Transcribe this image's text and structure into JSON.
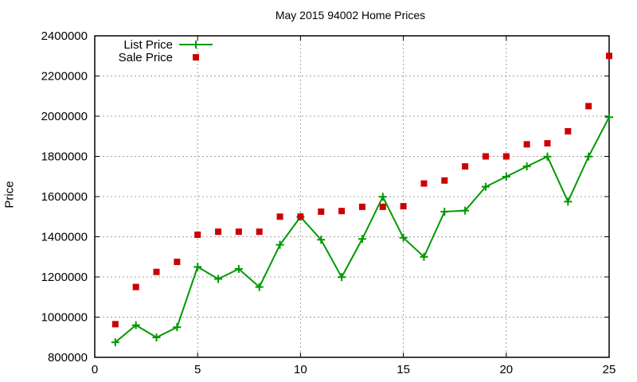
{
  "chart_data": {
    "type": "line",
    "title": "May 2015 94002 Home Prices",
    "xlabel": "",
    "ylabel": "Price",
    "xlim": [
      0,
      25
    ],
    "ylim": [
      800000,
      2400000
    ],
    "x_ticks": [
      "0",
      "5",
      "10",
      "15",
      "20",
      "25"
    ],
    "y_ticks": [
      "800000",
      "1000000",
      "1200000",
      "1400000",
      "1600000",
      "1800000",
      "2000000",
      "2200000",
      "2400000"
    ],
    "grid": true,
    "legend_position": "top-left",
    "x": [
      1,
      2,
      3,
      4,
      5,
      6,
      7,
      8,
      9,
      10,
      11,
      12,
      13,
      14,
      15,
      16,
      17,
      18,
      19,
      20,
      21,
      22,
      23,
      24,
      25
    ],
    "series": [
      {
        "name": "List Price",
        "style": "line+cross",
        "color": "#009900",
        "values": [
          875000,
          960000,
          899000,
          950000,
          1250000,
          1190000,
          1240000,
          1150000,
          1360000,
          1499000,
          1385000,
          1199000,
          1389000,
          1599000,
          1395000,
          1300000,
          1525000,
          1530000,
          1649000,
          1699000,
          1750000,
          1799000,
          1575000,
          1799000,
          1995000
        ]
      },
      {
        "name": "Sale Price",
        "style": "square-marker",
        "color": "#cc0000",
        "values": [
          965000,
          1150000,
          1225000,
          1275000,
          1410000,
          1425000,
          1425000,
          1425000,
          1500000,
          1500000,
          1525000,
          1528000,
          1549000,
          1549000,
          1552000,
          1665000,
          1680000,
          1750000,
          1800000,
          1800000,
          1860000,
          1865000,
          1925000,
          2050000,
          2300000
        ]
      }
    ]
  }
}
